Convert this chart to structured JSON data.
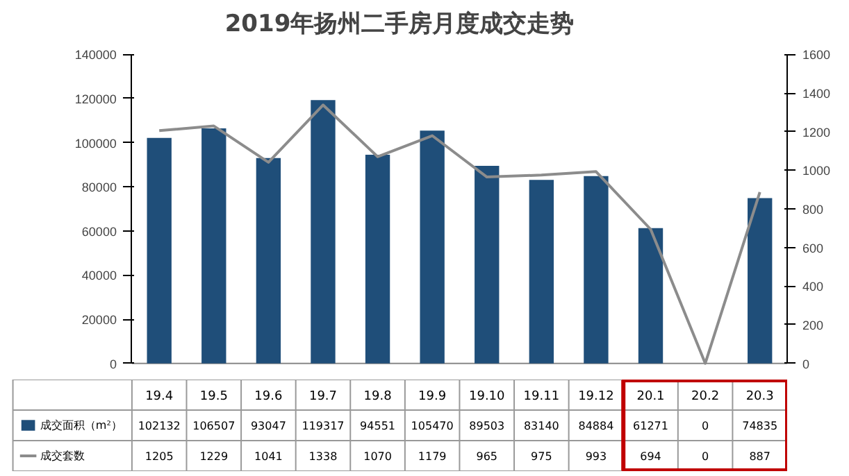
{
  "chart_data": {
    "type": "bar",
    "title": "2019年扬州二手房月度成交走势",
    "categories": [
      "19.4",
      "19.5",
      "19.6",
      "19.7",
      "19.8",
      "19.9",
      "19.10",
      "19.11",
      "19.12",
      "20.1",
      "20.2",
      "20.3"
    ],
    "series": [
      {
        "name": "成交面积（m²）",
        "color": "#1f4e79",
        "values": [
          102132,
          106507,
          93047,
          119317,
          94551,
          105470,
          89503,
          83140,
          84884,
          61271,
          0,
          74835
        ]
      },
      {
        "name": "成交套数",
        "type": "line",
        "axis": "y2",
        "color": "#8c8c8c",
        "values": [
          1205,
          1229,
          1041,
          1338,
          1070,
          1179,
          965,
          975,
          993,
          694,
          0,
          887
        ]
      }
    ],
    "ylim": [
      0,
      140000
    ],
    "yticks": [
      0,
      20000,
      40000,
      60000,
      80000,
      100000,
      120000,
      140000
    ],
    "y2lim": [
      0,
      1600
    ],
    "y2ticks": [
      0,
      200,
      400,
      600,
      800,
      1000,
      1200,
      1400,
      1600
    ],
    "grid": false,
    "legend": "bottom",
    "data_labels": true,
    "marker": "none",
    "line_style": "solid"
  }
}
